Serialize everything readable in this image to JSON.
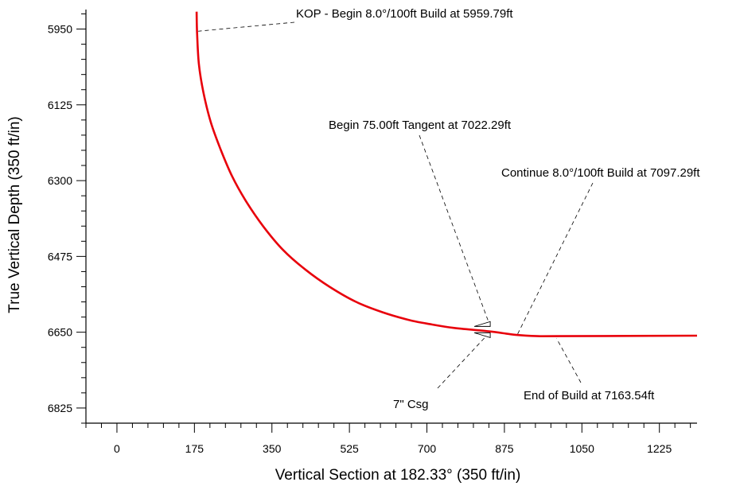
{
  "chart_data": {
    "type": "line",
    "title": "",
    "xlabel": "Vertical Section at 182.33° (350 ft/in)",
    "ylabel": "True Vertical Depth (350 ft/in)",
    "xlim": [
      -70,
      1310
    ],
    "ylim": [
      5905,
      6860
    ],
    "y_inverted": true,
    "x_ticks": [
      0,
      175,
      350,
      525,
      700,
      875,
      1050,
      1225
    ],
    "x_tick_labels": [
      "0",
      "175",
      "350",
      "525",
      "700",
      "875",
      "1050",
      "1225"
    ],
    "y_ticks": [
      5950,
      6125,
      6300,
      6475,
      6650,
      6825
    ],
    "y_tick_labels": [
      "5950",
      "6125",
      "6300",
      "6475",
      "6650",
      "6825"
    ],
    "grid": false,
    "series": [
      {
        "color": "#e8000b",
        "x": [
          180,
          181,
          185,
          195,
          212,
          235,
          260,
          290,
          330,
          375,
          425,
          480,
          540,
          600,
          660,
          700,
          760,
          840,
          900,
          950,
          1000,
          1310
        ],
        "y": [
          5910,
          5960,
          6030,
          6095,
          6165,
          6230,
          6290,
          6345,
          6405,
          6460,
          6505,
          6545,
          6580,
          6604,
          6622,
          6630,
          6640,
          6648,
          6656,
          6659,
          6659,
          6658
        ]
      }
    ],
    "annotations": [
      {
        "text": "KOP - Begin 8.0°/100ft Build at 5959.79ft",
        "point": [
          180,
          5955
        ]
      },
      {
        "text": "Begin 75.00ft Tangent at 7022.29ft",
        "point": [
          843,
          6645
        ]
      },
      {
        "text": "Continue 8.0°/100ft Build at 7097.29ft",
        "point": [
          905,
          6654
        ]
      },
      {
        "text": "End of Build at 7163.54ft",
        "point": [
          1000,
          6659
        ]
      },
      {
        "text": "7\" Csg",
        "point": [
          843,
          6655
        ]
      }
    ]
  }
}
